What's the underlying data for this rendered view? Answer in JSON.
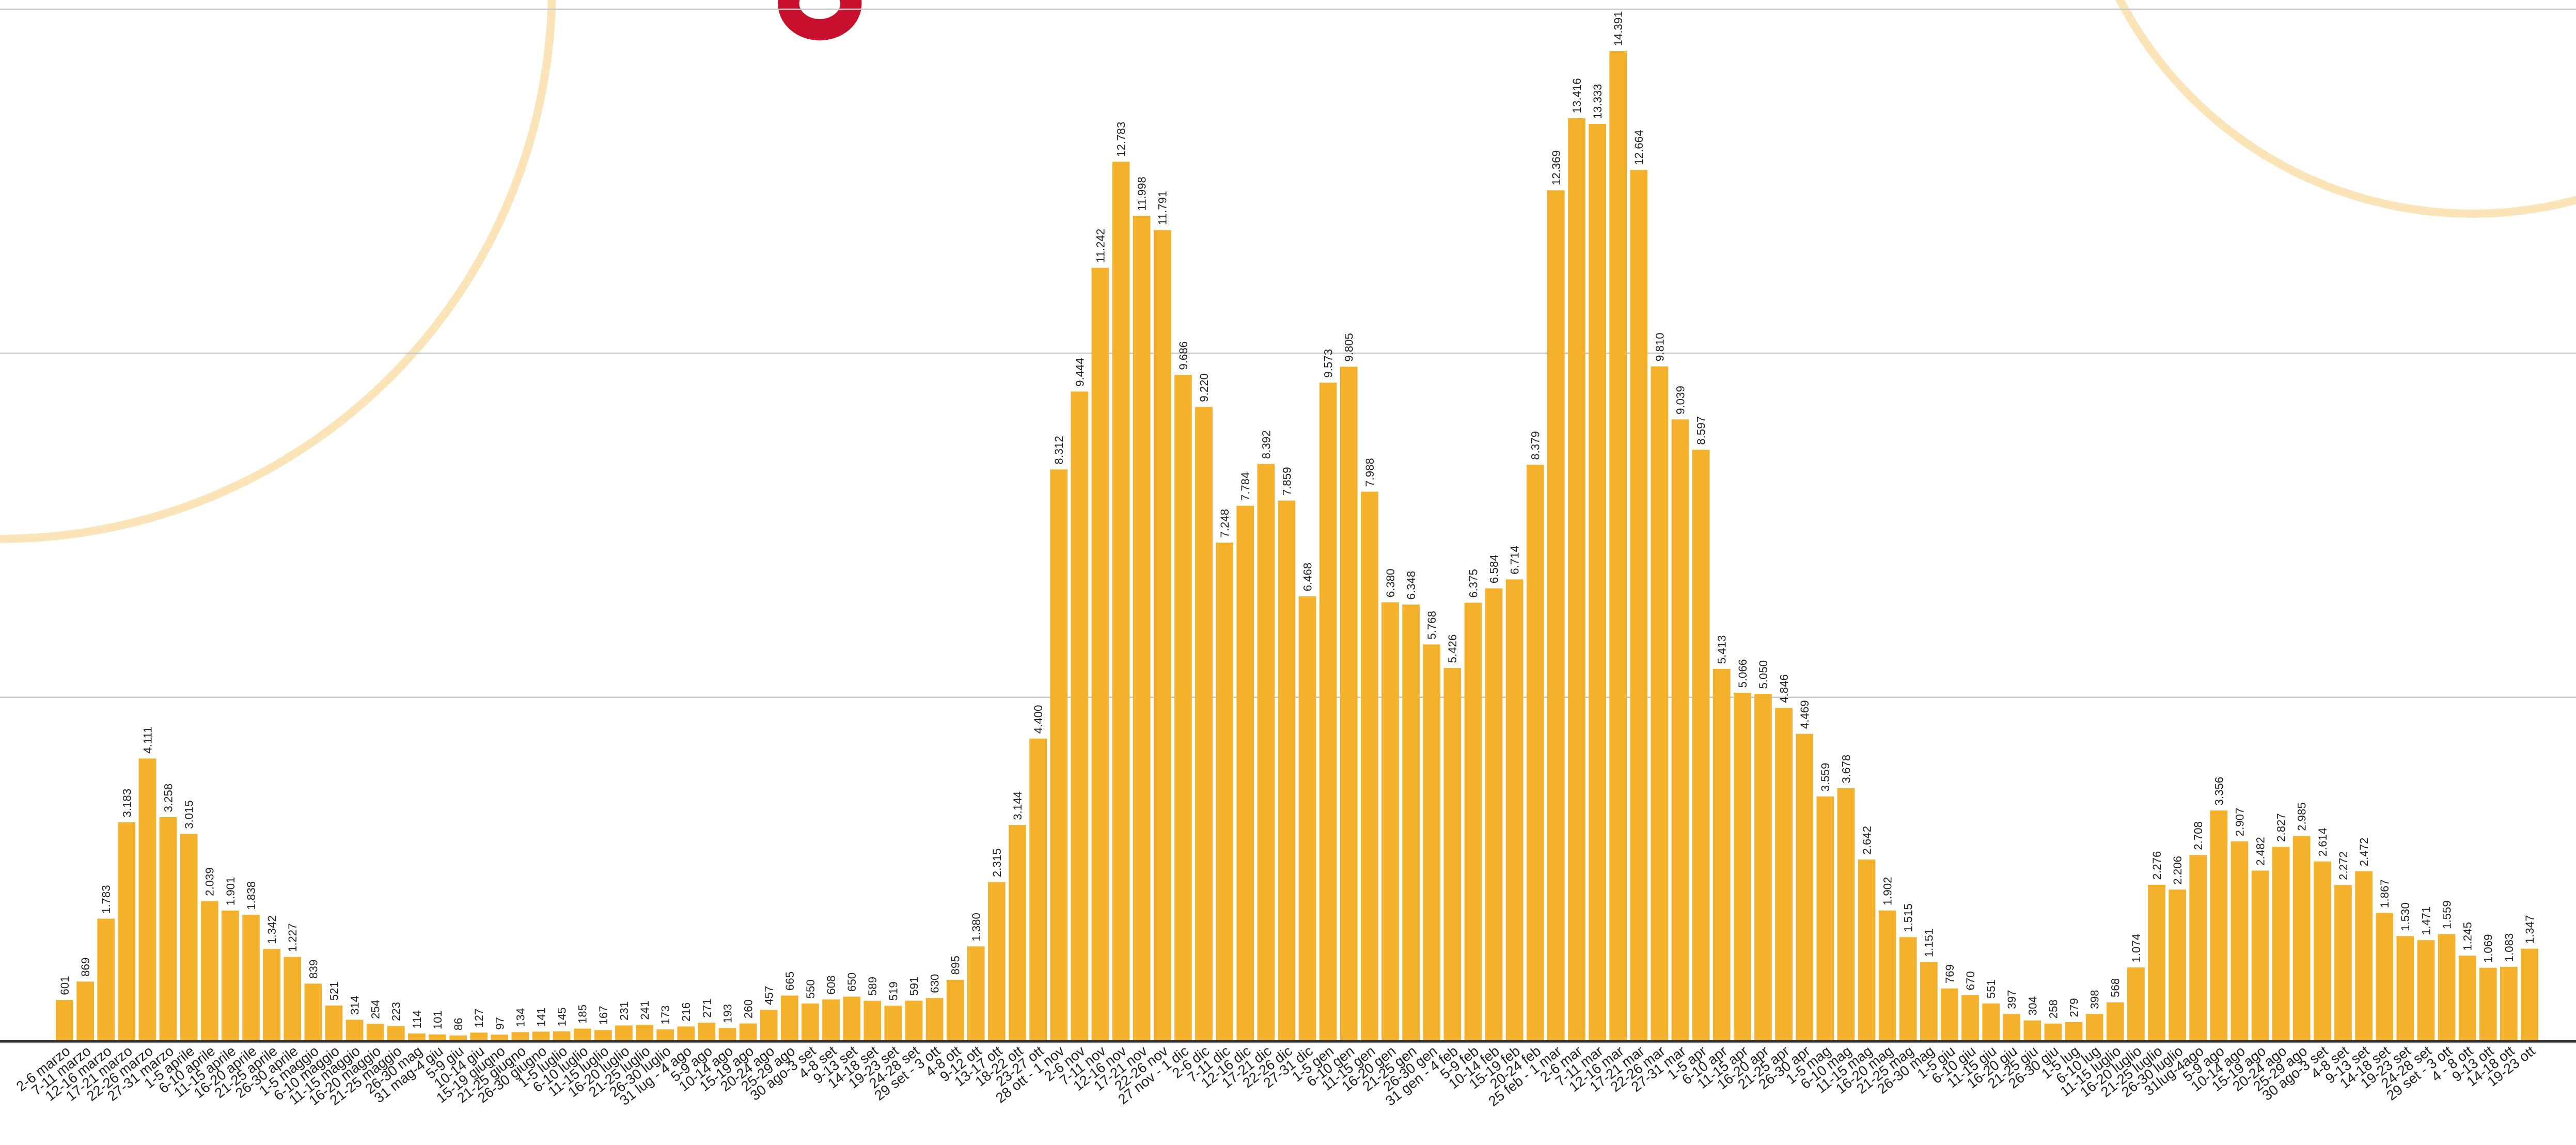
{
  "chart_data": {
    "type": "bar",
    "color": "#f4b12c",
    "grid": true,
    "ylim": [
      0,
      15000
    ],
    "yticks": [
      0,
      5000,
      10000,
      15000
    ],
    "categories": [
      "2-6 marzo",
      "7-11 marzo",
      "12-16 marzo",
      "17-21 marzo",
      "22-26 marzo",
      "27-31 marzo",
      "1-5 aprile",
      "6-10 aprile",
      "11-15 aprile",
      "16-20 aprile",
      "21-25 aprile",
      "26-30 aprile",
      "1-5 maggio",
      "6-10 maggio",
      "11-15 maggio",
      "16-20 maggio",
      "21-25 maggio",
      "26-30 mag",
      "31 mag-4 giu",
      "5-9 giu",
      "10-14 giu",
      "15-19 giugno",
      "21-25 giugno",
      "26-30 giugno",
      "1-5 luglio",
      "6-10 luglio",
      "11-15 luglio",
      "16-20 luglio",
      "21-25 luglio",
      "26-30 luglio",
      "31 lug - 4 ago",
      "5-9 ago",
      "10-14 ago",
      "15-19 ago",
      "20-24 ago",
      "25-29 ago",
      "30 ago-3 set",
      "4-8 set",
      "9-13 set",
      "14-18 set",
      "19-23 set",
      "24-28 set",
      "29 set - 3 ott",
      "4-8 ott",
      "9-12 ott",
      "13-17 ott",
      "18-22 ott",
      "23-27 ott",
      "28 ott - 1 nov",
      "2-6 nov",
      "7-11 nov",
      "12-16 nov",
      "17-21 nov",
      "22-26 nov",
      "27 nov - 1 dic",
      "2-6 dic",
      "7-11 dic",
      "12-16 dic",
      "17-21 dic",
      "22-26 dic",
      "27-31 dic",
      "1-5 gen",
      "6-10 gen",
      "11-15 gen",
      "16-20 gen",
      "21-25 gen",
      "26-30 gen",
      "31 gen - 4 feb",
      "5-9 feb",
      "10-14 feb",
      "15-19 feb",
      "20-24 feb",
      "25 feb - 1 mar",
      "2-6 mar",
      "7-11 mar",
      "12-16 mar",
      "17-21 mar",
      "22-26 mar",
      "27-31 mar",
      "1-5 apr",
      "6-10 apr",
      "11-15 apr",
      "16-20 apr",
      "21-25 apr",
      "26-30 apr",
      "1-5 mag",
      "6-10 mag",
      "11-15 mag",
      "16-20 mag",
      "21-25 mag",
      "26-30 mag",
      "1-5 giu",
      "6-10 giu",
      "11-15 giu",
      "16-20 giu",
      "21-25 giu",
      "26-30 giu",
      "1-5 lug",
      "6-10 lug",
      "11-15 luglio",
      "16-20 luglio",
      "21-25 luglio",
      "26-30 luglio",
      "31lug-4ago",
      "5-9 ago",
      "10-14 ago",
      "15-19 ago",
      "20-24 ago",
      "25-29 ago",
      "30 ago-3 set",
      "4-8 set",
      "9-13 set",
      "14-18 set",
      "19-23 set",
      "24-28 set",
      "29 set - 3 ott",
      "4 - 8 ott",
      "9-13 ott",
      "14-18 ott",
      "19-23 ott"
    ],
    "values": [
      601,
      869,
      1783,
      3183,
      4111,
      3258,
      3015,
      2039,
      1901,
      1838,
      1342,
      1227,
      839,
      521,
      314,
      254,
      223,
      114,
      101,
      86,
      127,
      97,
      134,
      141,
      145,
      185,
      167,
      231,
      241,
      173,
      216,
      271,
      193,
      260,
      457,
      665,
      550,
      608,
      650,
      589,
      519,
      591,
      630,
      895,
      1380,
      2315,
      3144,
      4400,
      8312,
      9444,
      11242,
      12783,
      11998,
      11791,
      9686,
      9220,
      7248,
      7784,
      8392,
      7859,
      6468,
      9573,
      9805,
      7988,
      6380,
      6348,
      5768,
      5426,
      6375,
      6584,
      6714,
      8379,
      12369,
      13416,
      13333,
      14391,
      12664,
      9810,
      9039,
      8597,
      5413,
      5066,
      5050,
      4846,
      4469,
      3559,
      3678,
      2642,
      1902,
      1515,
      1151,
      769,
      670,
      551,
      397,
      304,
      258,
      279,
      398,
      568,
      1074,
      2276,
      2206,
      2708,
      3356,
      2907,
      2482,
      2827,
      2985,
      2614,
      2272,
      2472,
      1867,
      1530,
      1471,
      1559,
      1245,
      1069,
      1083,
      1347
    ],
    "value_labels": [
      "601",
      "869",
      "1.783",
      "3.183",
      "4.111",
      "3.258",
      "3.015",
      "2.039",
      "1.901",
      "1.838",
      "1.342",
      "1.227",
      "839",
      "521",
      "314",
      "254",
      "223",
      "114",
      "101",
      "86",
      "127",
      "97",
      "134",
      "141",
      "145",
      "185",
      "167",
      "231",
      "241",
      "173",
      "216",
      "271",
      "193",
      "260",
      "457",
      "665",
      "550",
      "608",
      "650",
      "589",
      "519",
      "591",
      "630",
      "895",
      "1.380",
      "2.315",
      "3.144",
      "4.400",
      "8.312",
      "9.444",
      "11.242",
      "12.783",
      "11.998",
      "11.791",
      "9.686",
      "9.220",
      "7.248",
      "7.784",
      "8.392",
      "7.859",
      "6.468",
      "9.573",
      "9.805",
      "7.988",
      "6.380",
      "6.348",
      "5.768",
      "5.426",
      "6.375",
      "6.584",
      "6.714",
      "8.379",
      "12.369",
      "13.416",
      "13.333",
      "14.391",
      "12.664",
      "9.810",
      "9.039",
      "8.597",
      "5.413",
      "5.066",
      "5.050",
      "4.846",
      "4.469",
      "3.559",
      "3.678",
      "2.642",
      "1.902",
      "1.515",
      "1.151",
      "769",
      "670",
      "551",
      "397",
      "304",
      "258",
      "279",
      "398",
      "568",
      "1.074",
      "2.276",
      "2.206",
      "2.708",
      "3.356",
      "2.907",
      "2.482",
      "2.827",
      "2.985",
      "2.614",
      "2.272",
      "2.472",
      "1.867",
      "1.530",
      "1.471",
      "1.559",
      "1.245",
      "1.069",
      "1.083",
      "1.347"
    ]
  }
}
